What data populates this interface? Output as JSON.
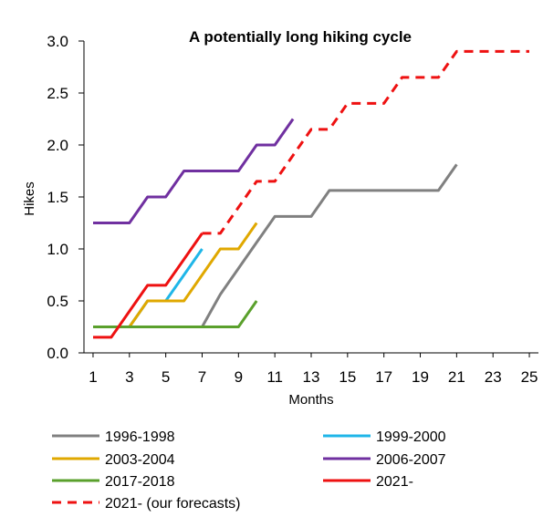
{
  "chart_data": {
    "type": "line",
    "title": "A potentially long hiking cycle",
    "xlabel": "Months",
    "ylabel": "Hikes",
    "xlim": [
      0.5,
      25.5
    ],
    "ylim": [
      0,
      3.0
    ],
    "x_ticks": [
      1,
      3,
      5,
      7,
      9,
      11,
      13,
      15,
      17,
      19,
      21,
      23,
      25
    ],
    "x_tick_labels": [
      "1",
      "3",
      "5",
      "7",
      "9",
      "11",
      "13",
      "15",
      "17",
      "19",
      "21",
      "23",
      "25"
    ],
    "y_ticks": [
      0,
      0.5,
      1.0,
      1.5,
      2.0,
      2.5,
      3.0
    ],
    "y_tick_labels": [
      "0.0",
      "0.5",
      "1.0",
      "1.5",
      "2.0",
      "2.5",
      "3.0"
    ],
    "grid": false,
    "legend_position": "bottom",
    "series": [
      {
        "name": "1996-1998",
        "color": "#808080",
        "dashed": false,
        "x": [
          1,
          2,
          3,
          4,
          5,
          6,
          7,
          8,
          9,
          10,
          11,
          12,
          13,
          14,
          15,
          16,
          17,
          18,
          19,
          20,
          21
        ],
        "y": [
          0.25,
          0.25,
          0.25,
          0.25,
          0.25,
          0.25,
          0.25,
          0.5625,
          0.8125,
          1.0625,
          1.3125,
          1.3125,
          1.3125,
          1.5625,
          1.5625,
          1.5625,
          1.5625,
          1.5625,
          1.5625,
          1.5625,
          1.8125
        ]
      },
      {
        "name": "1999-2000",
        "color": "#1fb6e8",
        "dashed": false,
        "x": [
          1,
          2,
          3,
          4,
          5,
          6,
          7
        ],
        "y": [
          0.25,
          0.25,
          0.25,
          0.5,
          0.5,
          0.75,
          1.0
        ]
      },
      {
        "name": "2003-2004",
        "color": "#e0a800",
        "dashed": false,
        "x": [
          1,
          2,
          3,
          4,
          5,
          6,
          7,
          8,
          9,
          10
        ],
        "y": [
          0.25,
          0.25,
          0.25,
          0.5,
          0.5,
          0.5,
          0.75,
          1.0,
          1.0,
          1.25
        ]
      },
      {
        "name": "2006-2007",
        "color": "#7030a0",
        "dashed": false,
        "x": [
          1,
          2,
          3,
          4,
          5,
          6,
          7,
          8,
          9,
          10,
          11,
          12
        ],
        "y": [
          1.25,
          1.25,
          1.25,
          1.5,
          1.5,
          1.75,
          1.75,
          1.75,
          1.75,
          2.0,
          2.0,
          2.25
        ]
      },
      {
        "name": "2017-2018",
        "color": "#5aa02c",
        "dashed": false,
        "x": [
          1,
          2,
          3,
          4,
          5,
          6,
          7,
          8,
          9,
          10
        ],
        "y": [
          0.25,
          0.25,
          0.25,
          0.25,
          0.25,
          0.25,
          0.25,
          0.25,
          0.25,
          0.5
        ]
      },
      {
        "name": "2021-",
        "color": "#ee1111",
        "dashed": false,
        "x": [
          1,
          2,
          3,
          4,
          5,
          6,
          7
        ],
        "y": [
          0.15,
          0.15,
          0.4,
          0.65,
          0.65,
          0.9,
          1.15
        ]
      },
      {
        "name": "2021- (our forecasts)",
        "color": "#ee1111",
        "dashed": true,
        "x": [
          7,
          8,
          9,
          10,
          11,
          12,
          13,
          14,
          15,
          16,
          17,
          18,
          19,
          20,
          21,
          22,
          23,
          24,
          25
        ],
        "y": [
          1.15,
          1.15,
          1.4,
          1.65,
          1.65,
          1.9,
          2.15,
          2.15,
          2.4,
          2.4,
          2.4,
          2.65,
          2.65,
          2.65,
          2.9,
          2.9,
          2.9,
          2.9,
          2.9
        ]
      }
    ]
  }
}
